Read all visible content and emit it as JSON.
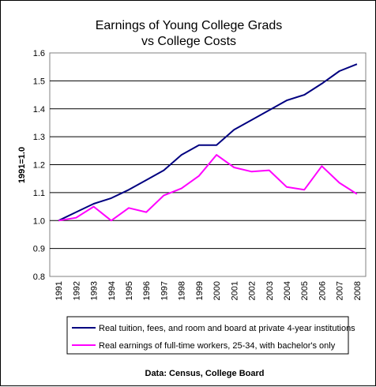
{
  "chart_data": {
    "type": "line",
    "title_lines": [
      "Earnings of Young College Grads",
      "vs College Costs"
    ],
    "ylabel": "1991=1.0",
    "ylim": [
      0.8,
      1.6
    ],
    "yticks": [
      "0.8",
      "0.9",
      "1.0",
      "1.1",
      "1.2",
      "1.3",
      "1.4",
      "1.5",
      "1.6"
    ],
    "grid": true,
    "legend_position": "bottom",
    "source": "Data: Census, College Board",
    "categories": [
      "1991",
      "1992",
      "1993",
      "1994",
      "1995",
      "1996",
      "1997",
      "1998",
      "1999",
      "2000",
      "2001",
      "2002",
      "2003",
      "2004",
      "2005",
      "2006",
      "2007",
      "2008"
    ],
    "series": [
      {
        "name": "Real tuition, fees, and room and board at private 4-year institutions",
        "color": "#000080",
        "values": [
          1.0,
          1.03,
          1.06,
          1.08,
          1.11,
          1.145,
          1.18,
          1.235,
          1.27,
          1.27,
          1.325,
          1.36,
          1.395,
          1.43,
          1.45,
          1.49,
          1.535,
          1.56
        ]
      },
      {
        "name": "Real earnings of full-time workers, 25-34, with bachelor's only",
        "color": "#FF00FF",
        "values": [
          1.0,
          1.01,
          1.05,
          1.0,
          1.045,
          1.03,
          1.09,
          1.115,
          1.16,
          1.235,
          1.19,
          1.175,
          1.18,
          1.12,
          1.11,
          1.195,
          1.135,
          1.095
        ]
      }
    ]
  }
}
